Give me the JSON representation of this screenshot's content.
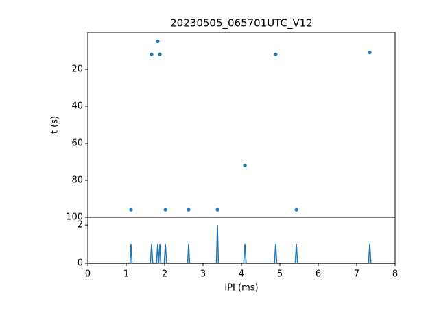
{
  "chart_data": [
    {
      "type": "scatter",
      "title": "20230505_065701UTC_V12",
      "ylabel": "t (s)",
      "color": "#1f77b4",
      "x": [
        1.125,
        1.66,
        1.82,
        1.875,
        2.02,
        2.625,
        3.375,
        4.09,
        4.89,
        5.43,
        7.34
      ],
      "values": [
        96,
        12,
        5,
        12,
        96,
        96,
        96,
        72,
        12,
        96,
        11
      ],
      "xlim": [
        0,
        8
      ],
      "ylim": [
        100,
        0
      ],
      "yticks": [
        20,
        40,
        60,
        80,
        100
      ]
    },
    {
      "type": "line",
      "xlabel": "IPI (ms)",
      "color": "#1f77b4",
      "x": [
        0,
        1.1,
        1.125,
        1.15,
        1.63,
        1.66,
        1.69,
        1.79,
        1.82,
        1.845,
        1.875,
        1.9,
        1.99,
        2.02,
        2.05,
        2.6,
        2.625,
        2.65,
        3.35,
        3.375,
        3.4,
        4.06,
        4.09,
        4.12,
        4.86,
        4.89,
        4.92,
        5.4,
        5.43,
        5.46,
        7.31,
        7.34,
        7.37,
        8
      ],
      "values": [
        0,
        0,
        1,
        0,
        0,
        1,
        0,
        0,
        1,
        0,
        1,
        0,
        0,
        1,
        0,
        0,
        1,
        0,
        0,
        2,
        0,
        0,
        1,
        0,
        0,
        1,
        0,
        0,
        1,
        0,
        0,
        1,
        0,
        0
      ],
      "xlim": [
        0,
        8
      ],
      "ylim": [
        0,
        2.4
      ],
      "xticks": [
        0,
        1,
        2,
        3,
        4,
        5,
        6,
        7,
        8
      ],
      "yticks": [
        0,
        2
      ]
    }
  ]
}
